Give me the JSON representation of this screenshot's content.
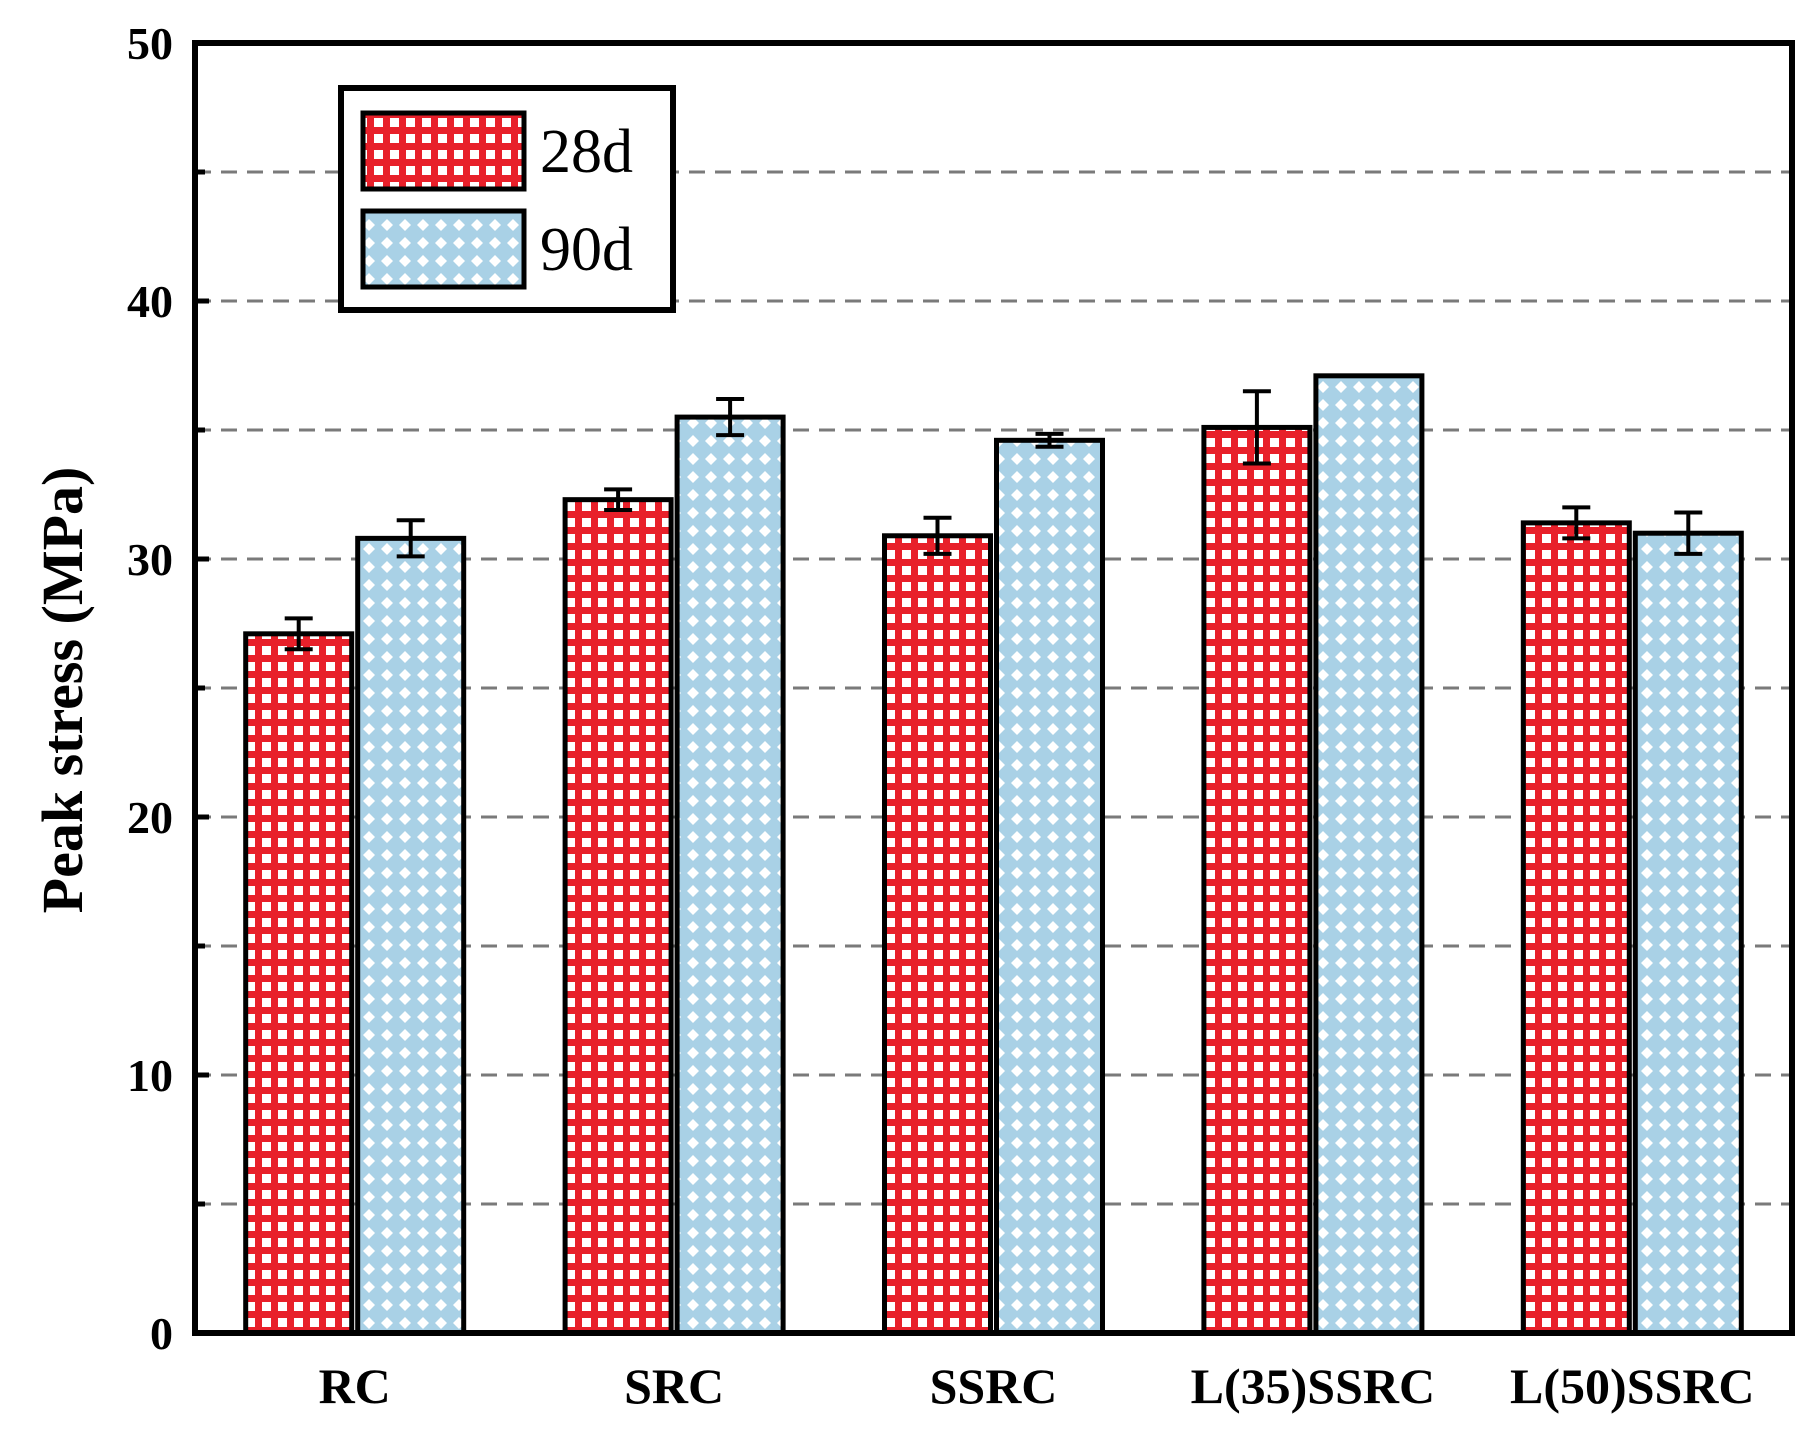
{
  "chart_data": {
    "type": "bar",
    "title": "",
    "xlabel": "",
    "ylabel": "Peak stress (MPa)",
    "ylim": [
      0,
      50
    ],
    "yticks": [
      0,
      10,
      20,
      30,
      40,
      50
    ],
    "grid": "dashed horizontal every 5",
    "legend_position": "top-left",
    "categories": [
      "RC",
      "SRC",
      "SSRC",
      "L(35)SSRC",
      "L(50)SSRC"
    ],
    "series": [
      {
        "name": "28d",
        "color": "#e8202a",
        "pattern": "grid",
        "values": [
          27.1,
          32.3,
          30.9,
          35.1,
          31.4
        ],
        "errors": [
          0.6,
          0.4,
          0.7,
          1.4,
          0.6
        ]
      },
      {
        "name": "90d",
        "color": "#a9d1e6",
        "pattern": "diamond",
        "values": [
          30.8,
          35.5,
          34.6,
          37.1,
          31.0
        ],
        "errors": [
          0.7,
          0.7,
          0.25,
          0.0,
          0.8
        ]
      }
    ]
  }
}
